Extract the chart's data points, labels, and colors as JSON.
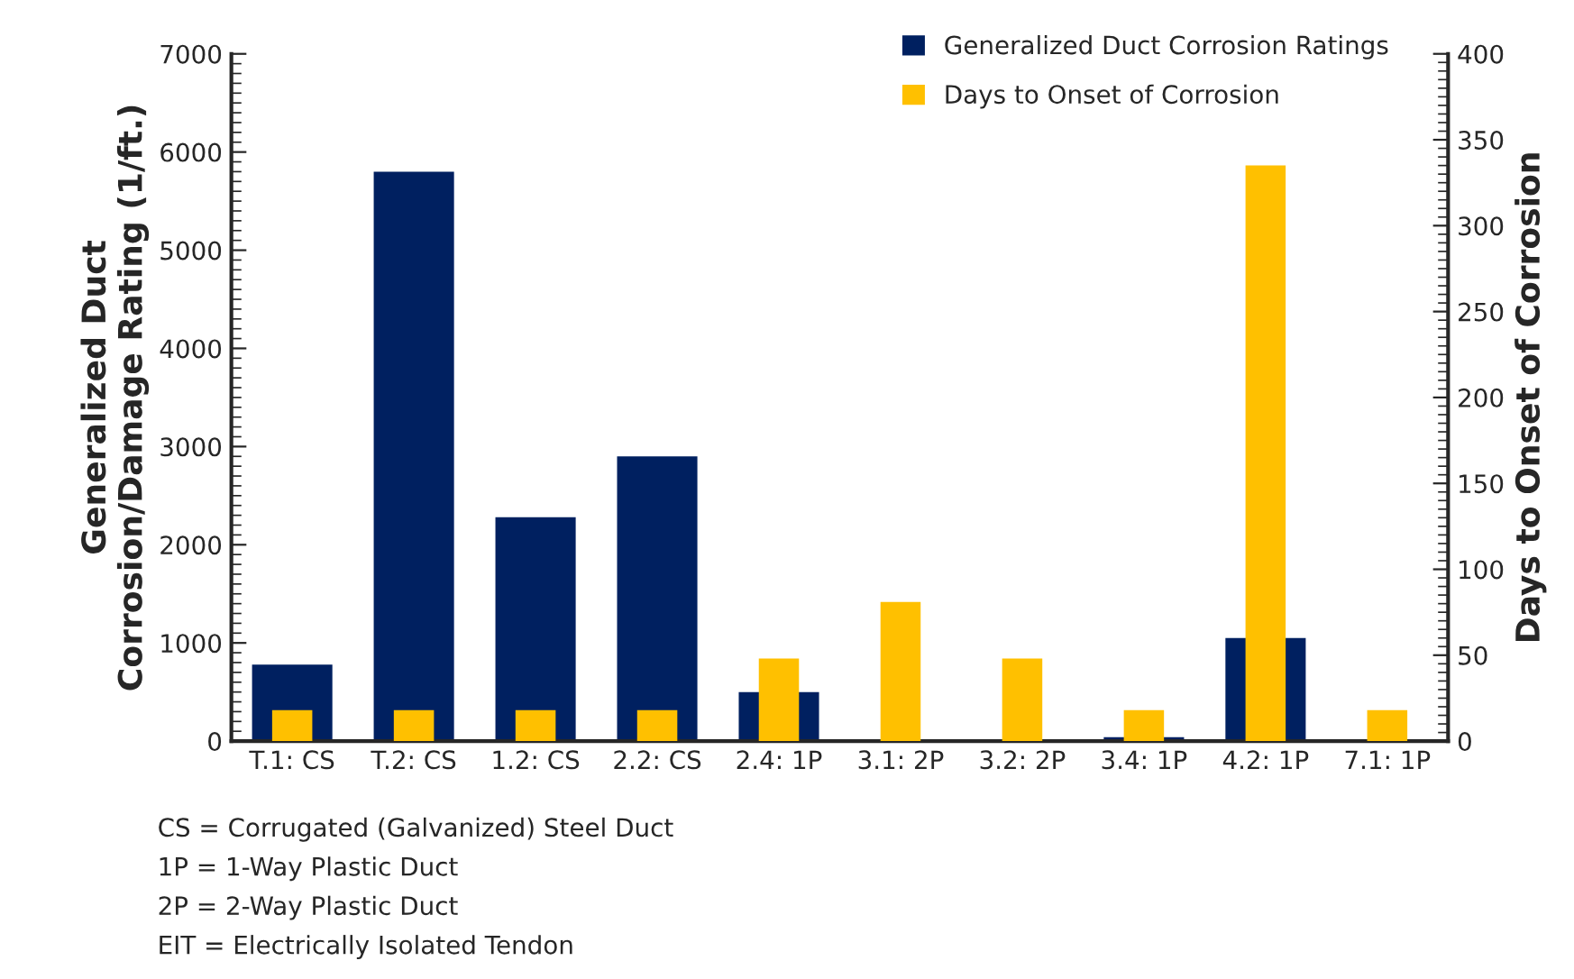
{
  "chart_data": {
    "type": "bar",
    "ylabel": "Generalized Duct\nCorrosion/Damage Rating (1/ft.)",
    "y2label": "Days to Onset of Corrosion",
    "categories": [
      "T.1: CS",
      "T.2: CS",
      "1.2: CS",
      "2.2: CS",
      "2.4: 1P",
      "3.1: 2P",
      "3.2: 2P",
      "3.4: 1P",
      "4.2: 1P",
      "7.1: 1P"
    ],
    "series": [
      {
        "name": "Generalized Duct Corrosion Ratings",
        "color": "#002060",
        "values": [
          780,
          5800,
          2280,
          2900,
          500,
          0,
          20,
          40,
          1050,
          0
        ]
      },
      {
        "name": "Days to Onset of Corrosion",
        "color": "#ffc000",
        "axis": "y2",
        "values": [
          18,
          18,
          18,
          18,
          48,
          81,
          48,
          18,
          335,
          18
        ]
      }
    ],
    "ylim": [
      0,
      7000
    ],
    "yticks": [
      0,
      1000,
      2000,
      3000,
      4000,
      5000,
      6000,
      7000
    ],
    "y2lim": [
      0,
      400
    ],
    "y2ticks": [
      0,
      50,
      100,
      150,
      200,
      250,
      300,
      350,
      400
    ],
    "legend": "top right",
    "grid": false,
    "annotations": [
      "CS = Corrugated (Galvanized) Steel Duct",
      "1P = 1-Way Plastic Duct",
      "2P = 2-Way Plastic Duct",
      "EIT = Electrically Isolated Tendon"
    ]
  }
}
